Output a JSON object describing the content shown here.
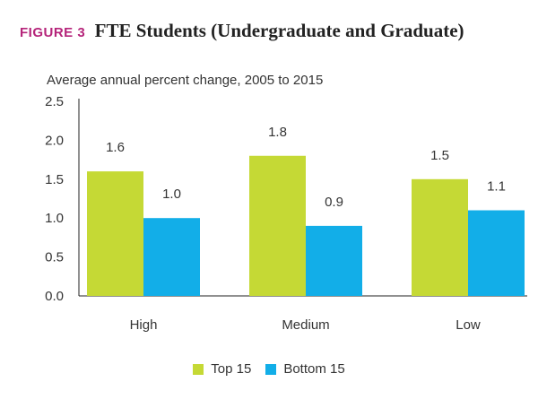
{
  "figure": {
    "label": "FIGURE 3",
    "title": "FTE Students (Undergraduate and Graduate)",
    "subtitle": "Average annual percent change, 2005 to 2015"
  },
  "colors": {
    "figure_label": "#b5247a",
    "top15": "#c5d935",
    "bottom15": "#12aee8",
    "axis": "#222222"
  },
  "chart_data": {
    "type": "bar",
    "title": "",
    "xlabel": "",
    "ylabel": "Average annual percent change, 2005 to 2015",
    "ylim": [
      0,
      2.5
    ],
    "yticks": [
      "0.0",
      "0.5",
      "1.0",
      "1.5",
      "2.0",
      "2.5"
    ],
    "categories": [
      "High",
      "Medium",
      "Low"
    ],
    "series": [
      {
        "name": "Top 15",
        "values": [
          1.6,
          1.8,
          1.5
        ],
        "labels": [
          "1.6",
          "1.8",
          "1.5"
        ]
      },
      {
        "name": "Bottom 15",
        "values": [
          1.0,
          0.9,
          1.1
        ],
        "labels": [
          "1.0",
          "0.9",
          "1.1"
        ]
      }
    ],
    "grid": false,
    "legend": "bottom-center"
  }
}
